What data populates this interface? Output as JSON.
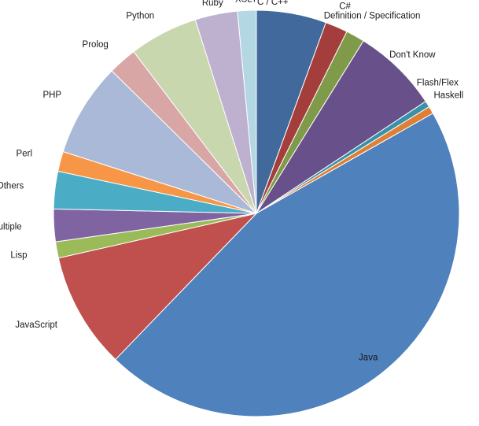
{
  "chart_data": {
    "type": "pie",
    "start_angle_deg": 0,
    "direction": "clockwise",
    "legend": "none",
    "slices": [
      {
        "label": "C / C++",
        "value": 5.6,
        "color": "#41699B"
      },
      {
        "label": "C#",
        "value": 1.8,
        "color": "#A43E3D"
      },
      {
        "label": "Definition / Specification",
        "value": 1.5,
        "color": "#7F9A48"
      },
      {
        "label": "Don't Know",
        "value": 6.9,
        "color": "#68508A"
      },
      {
        "label": "Flash/Flex",
        "value": 0.5,
        "color": "#3991A9"
      },
      {
        "label": "Haskell",
        "value": 0.6,
        "color": "#DD7F35"
      },
      {
        "label": "Java",
        "value": 45.7,
        "color": "#4F81BD"
      },
      {
        "label": "JavaScript",
        "value": 9.3,
        "color": "#C0504D"
      },
      {
        "label": "Lisp",
        "value": 1.3,
        "color": "#9BBB59"
      },
      {
        "label": "Multiple",
        "value": 2.6,
        "color": "#8064A2"
      },
      {
        "label": "Others",
        "value": 3.0,
        "color": "#4BACC6"
      },
      {
        "label": "Perl",
        "value": 1.6,
        "color": "#F79646"
      },
      {
        "label": "PHP",
        "value": 7.5,
        "color": "#AAB9D7"
      },
      {
        "label": "Prolog",
        "value": 2.3,
        "color": "#D9A6A6"
      },
      {
        "label": "Python",
        "value": 5.5,
        "color": "#C8D7AD"
      },
      {
        "label": "Ruby",
        "value": 3.4,
        "color": "#BEB0CF"
      },
      {
        "label": "XSLT",
        "value": 1.5,
        "color": "#B3D7E3"
      }
    ]
  }
}
